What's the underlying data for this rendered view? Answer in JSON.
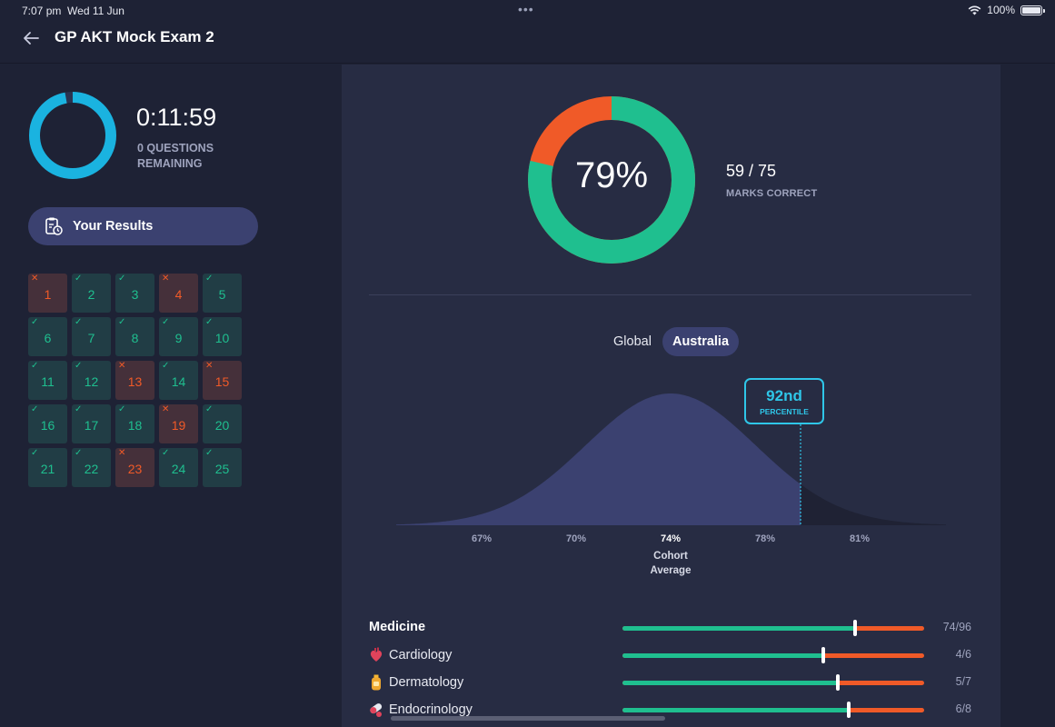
{
  "status": {
    "time": "7:07 pm",
    "date": "Wed 11 Jun",
    "battery": "100%"
  },
  "header": {
    "title": "GP AKT Mock Exam 2"
  },
  "timer": {
    "value": "0:11:59",
    "subtitle": "0 QUESTIONS REMAINING",
    "progress": 0.97
  },
  "results_button": {
    "label": "Your Results"
  },
  "questions": [
    {
      "n": "1",
      "status": "wrong"
    },
    {
      "n": "2",
      "status": "correct"
    },
    {
      "n": "3",
      "status": "correct"
    },
    {
      "n": "4",
      "status": "wrong"
    },
    {
      "n": "5",
      "status": "correct"
    },
    {
      "n": "6",
      "status": "correct"
    },
    {
      "n": "7",
      "status": "correct"
    },
    {
      "n": "8",
      "status": "correct"
    },
    {
      "n": "9",
      "status": "correct"
    },
    {
      "n": "10",
      "status": "correct"
    },
    {
      "n": "11",
      "status": "correct"
    },
    {
      "n": "12",
      "status": "correct"
    },
    {
      "n": "13",
      "status": "wrong"
    },
    {
      "n": "14",
      "status": "correct"
    },
    {
      "n": "15",
      "status": "wrong"
    },
    {
      "n": "16",
      "status": "correct"
    },
    {
      "n": "17",
      "status": "correct"
    },
    {
      "n": "18",
      "status": "correct"
    },
    {
      "n": "19",
      "status": "wrong"
    },
    {
      "n": "20",
      "status": "correct"
    },
    {
      "n": "21",
      "status": "correct"
    },
    {
      "n": "22",
      "status": "correct"
    },
    {
      "n": "23",
      "status": "wrong"
    },
    {
      "n": "24",
      "status": "correct"
    },
    {
      "n": "25",
      "status": "correct"
    }
  ],
  "score": {
    "percent": "79%",
    "marks": "59 / 75",
    "marks_label": "MARKS CORRECT",
    "correct": 59,
    "total": 75
  },
  "segments": {
    "global": "Global",
    "australia": "Australia",
    "selected": "Australia"
  },
  "percentile": {
    "value": "92nd",
    "label": "PERCENTILE",
    "position_percent": 79.5
  },
  "distribution": {
    "ticks": [
      "67%",
      "70%",
      "74%",
      "78%",
      "81%"
    ],
    "cohort_label": "Cohort Average",
    "mean_percent": 74
  },
  "categories": [
    {
      "name": "Medicine",
      "score": "74/96",
      "correct": 74,
      "total": 96,
      "bold": true,
      "icon": ""
    },
    {
      "name": "Cardiology",
      "score": "4/6",
      "correct": 4,
      "total": 6,
      "bold": false,
      "icon": "heart-icon"
    },
    {
      "name": "Dermatology",
      "score": "5/7",
      "correct": 5,
      "total": 7,
      "bold": false,
      "icon": "lotion-bottle-icon"
    },
    {
      "name": "Endocrinology",
      "score": "6/8",
      "correct": 6,
      "total": 8,
      "bold": false,
      "icon": "pills-icon"
    }
  ],
  "colors": {
    "correct": "#1fbf8f",
    "wrong": "#f05a28",
    "accent": "#2fc6e8",
    "timer": "#1ab3e0"
  }
}
